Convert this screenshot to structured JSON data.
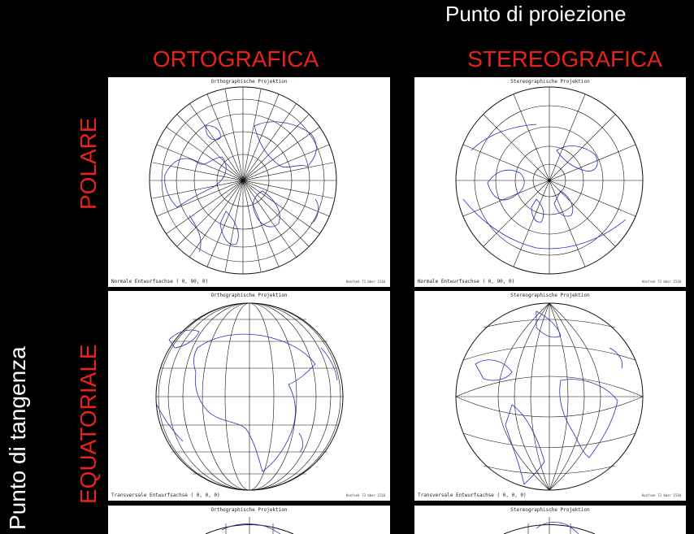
{
  "header": {
    "projection_point": "Punto di proiezione"
  },
  "columns": [
    {
      "label": "ORTOGRAFICA",
      "color": "#e8231c"
    },
    {
      "label": "STEREOGRAFICA",
      "color": "#e8231c"
    }
  ],
  "rows": [
    {
      "label": "POLARE",
      "color": "#e8231c"
    },
    {
      "label": "EQUATORIALE",
      "color": "#e8231c"
    }
  ],
  "side_label": "Punto di tangenza",
  "panels": [
    {
      "title": "Orthographische Projektion",
      "axis": "Normale Entwurfsachse ( 0, 90, 0)",
      "credit": "Hanfsek 73 bber 1530",
      "aspect": "polar",
      "projection": "orthographic"
    },
    {
      "title": "Stereographische Projektion",
      "axis": "Normale Entwurfsachse ( 0, 90, 0)",
      "credit": "Hanfsek 73 bber 1530",
      "aspect": "polar",
      "projection": "stereographic"
    },
    {
      "title": "Orthographische Projektion",
      "axis": "Transversale Entwurfsachse ( 0, 0, 0)",
      "credit": "Hanfsek 73 bber 1530",
      "aspect": "equatorial",
      "projection": "orthographic"
    },
    {
      "title": "Stereographische Projektion",
      "axis": "Transversale Entwurfsachse ( 0, 0, 0)",
      "credit": "Hanfsek 73 bber 1530",
      "aspect": "equatorial",
      "projection": "stereographic"
    },
    {
      "title": "Orthographische Projektion",
      "axis": "",
      "credit": "",
      "aspect": "partial",
      "projection": "orthographic"
    },
    {
      "title": "Stereographische Projektion",
      "axis": "",
      "credit": "",
      "aspect": "partial",
      "projection": "stereographic"
    }
  ],
  "colors": {
    "background": "#000000",
    "coastline": "#2233bb",
    "graticule": "#111111"
  }
}
